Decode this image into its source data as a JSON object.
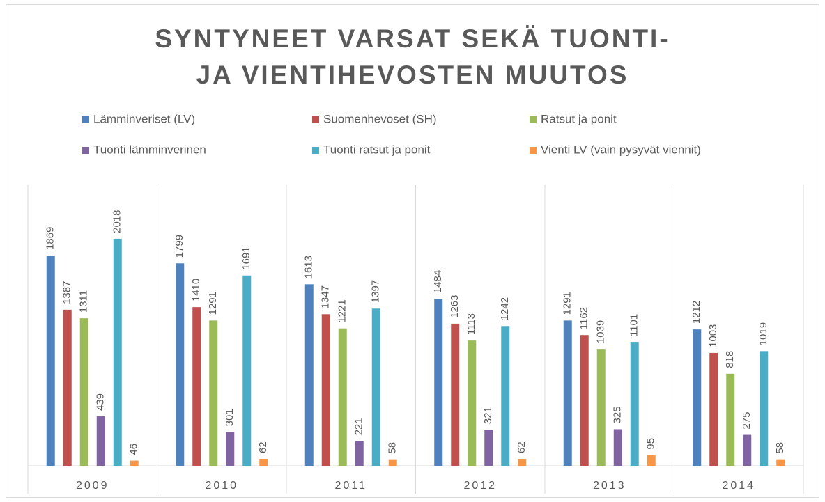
{
  "chart_data": {
    "type": "bar",
    "title": "SYNTYNEET VARSAT SEKÄ TUONTI- JA VIENTIHEVOSTEN MUUTOS",
    "categories": [
      "2009",
      "2010",
      "2011",
      "2012",
      "2013",
      "2014"
    ],
    "series": [
      {
        "name": "Lämminveriset (LV)",
        "color": "#4f81bd",
        "values": [
          1869,
          1799,
          1613,
          1484,
          1291,
          1212
        ]
      },
      {
        "name": "Suomenhevoset (SH)",
        "color": "#c0504d",
        "values": [
          1387,
          1410,
          1347,
          1263,
          1162,
          1003
        ]
      },
      {
        "name": "Ratsut ja ponit",
        "color": "#9bbb59",
        "values": [
          1311,
          1291,
          1221,
          1113,
          1039,
          818
        ]
      },
      {
        "name": "Tuonti lämminverinen",
        "color": "#8064a2",
        "values": [
          439,
          301,
          221,
          321,
          325,
          275
        ]
      },
      {
        "name": "Tuonti ratsut ja ponit",
        "color": "#4bacc6",
        "values": [
          2018,
          1691,
          1397,
          1242,
          1101,
          1019
        ]
      },
      {
        "name": "Vienti LV (vain pysyvät viennit)",
        "color": "#f79646",
        "values": [
          46,
          62,
          58,
          62,
          95,
          58
        ]
      }
    ],
    "ylim": [
      0,
      2500
    ],
    "legend": "top"
  }
}
